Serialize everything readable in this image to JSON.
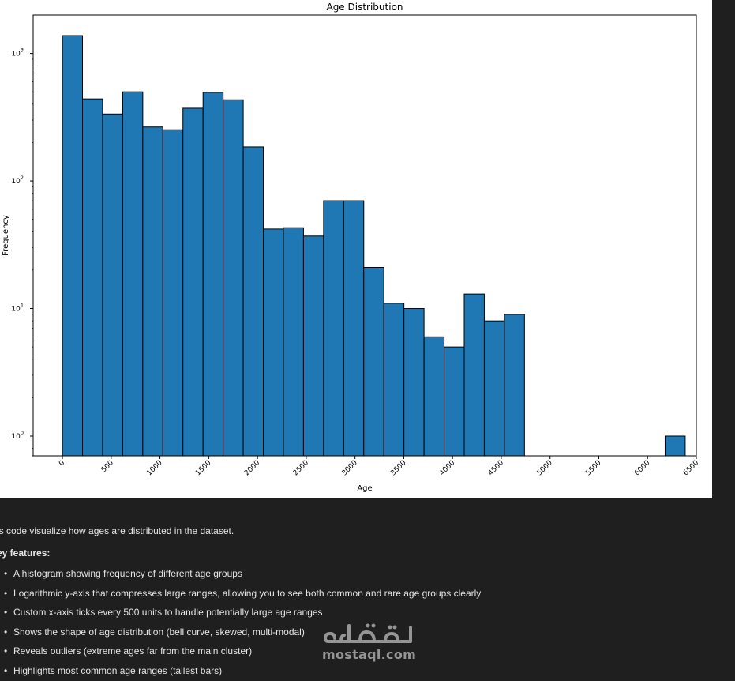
{
  "chart_data": {
    "type": "bar",
    "title": "Age Distribution",
    "xlabel": "Age",
    "ylabel": "Frequency",
    "yscale": "log",
    "ylim": [
      0.7,
      2000
    ],
    "xlim": [
      -300,
      6500
    ],
    "x_ticks": [
      0,
      500,
      1000,
      1500,
      2000,
      2500,
      3000,
      3500,
      4000,
      4500,
      5000,
      5500,
      6000,
      6500
    ],
    "y_ticks": [
      {
        "value": 1,
        "label": "10",
        "exp": "0"
      },
      {
        "value": 10,
        "label": "10",
        "exp": "1"
      },
      {
        "value": 100,
        "label": "10",
        "exp": "2"
      },
      {
        "value": 1000,
        "label": "10",
        "exp": "3"
      }
    ],
    "bar_color": "#1f77b4",
    "edge_color": "#000000",
    "bin_width": 206,
    "bins": [
      {
        "x": 0,
        "value": 1380
      },
      {
        "x": 206,
        "value": 440
      },
      {
        "x": 412,
        "value": 335
      },
      {
        "x": 618,
        "value": 500
      },
      {
        "x": 824,
        "value": 265
      },
      {
        "x": 1030,
        "value": 252
      },
      {
        "x": 1236,
        "value": 372
      },
      {
        "x": 1442,
        "value": 495
      },
      {
        "x": 1648,
        "value": 433
      },
      {
        "x": 1854,
        "value": 185
      },
      {
        "x": 2060,
        "value": 42
      },
      {
        "x": 2266,
        "value": 43
      },
      {
        "x": 2472,
        "value": 37
      },
      {
        "x": 2678,
        "value": 70
      },
      {
        "x": 2884,
        "value": 70
      },
      {
        "x": 3090,
        "value": 21
      },
      {
        "x": 3296,
        "value": 11
      },
      {
        "x": 3502,
        "value": 10
      },
      {
        "x": 3708,
        "value": 6
      },
      {
        "x": 3914,
        "value": 5
      },
      {
        "x": 4120,
        "value": 13
      },
      {
        "x": 4326,
        "value": 8
      },
      {
        "x": 4532,
        "value": 9
      },
      {
        "x": 6180,
        "value": 1
      }
    ],
    "legend": "none",
    "grid": false
  },
  "notes": {
    "intro": "is code visualize how ages are distributed in the dataset.",
    "features_heading": "ey features:",
    "features": [
      "A histogram showing frequency of different age groups",
      "Logarithmic y-axis that compresses large ranges, allowing you to see both common and rare age groups clearly",
      "Custom x-axis ticks every 500 units to handle potentially large age ranges",
      "Shows the shape of age distribution (bell curve, skewed, multi-modal)",
      "Reveals outliers (extreme ages far from the main cluster)",
      "Highlights most common age ranges (tallest bars)"
    ]
  },
  "watermark": {
    "logo_text": "مستقل",
    "text": "mostaql.com"
  }
}
